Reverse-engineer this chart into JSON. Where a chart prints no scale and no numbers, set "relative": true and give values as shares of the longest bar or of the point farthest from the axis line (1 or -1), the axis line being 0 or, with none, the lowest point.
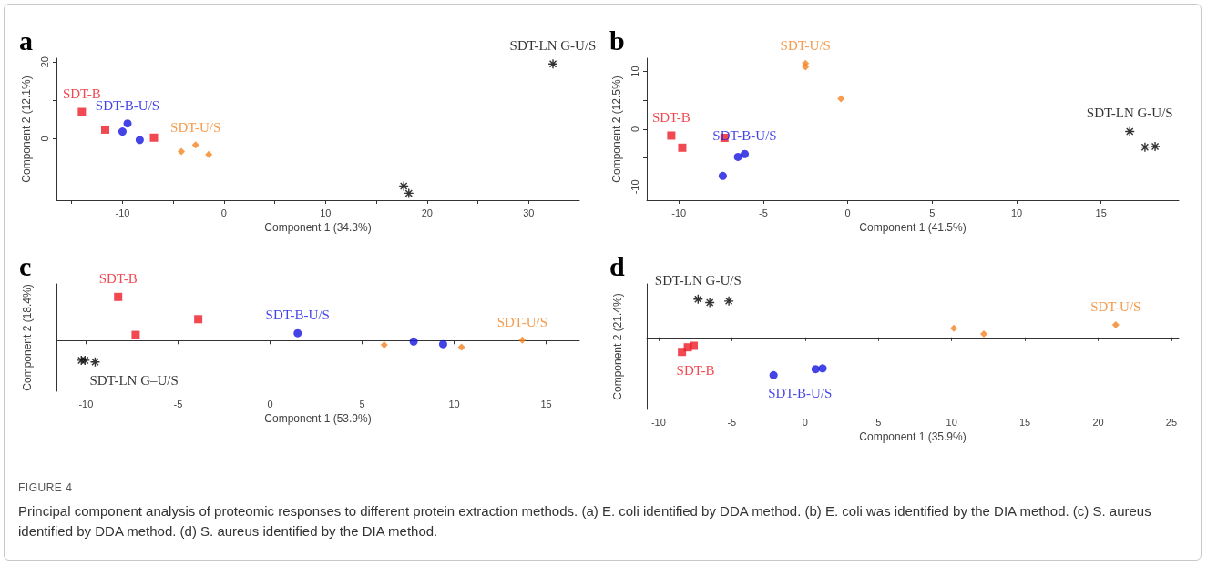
{
  "chart_data": [
    {
      "type": "scatter",
      "title": "a",
      "xlabel": "Component 1 (34.3%)",
      "ylabel": "Component 2 (12.1%)",
      "xlim": [
        -16.5,
        35
      ],
      "ylim": [
        -16,
        21
      ],
      "xticks": [
        {
          "value": -15,
          "label": null
        },
        -10,
        {
          "value": -5,
          "label": null
        },
        0,
        {
          "value": 5,
          "label": null
        },
        10,
        {
          "value": 15,
          "label": null
        },
        20,
        {
          "value": 25,
          "label": null
        },
        30
      ],
      "yticks": [
        {
          "value": -10,
          "label": null
        },
        0,
        {
          "value": 10,
          "label": null
        },
        20
      ],
      "series": [
        {
          "name": "SDT-B",
          "color": "#ee1c25",
          "marker": "square",
          "x": [
            -14.0,
            -11.7,
            -6.9
          ],
          "values": [
            7.0,
            2.4,
            0.3
          ]
        },
        {
          "name": "SDT-B-U/S",
          "color": "#1515e0",
          "marker": "circle",
          "x": [
            -9.5,
            -10.0,
            -8.3
          ],
          "values": [
            4.0,
            1.9,
            -0.3
          ]
        },
        {
          "name": "SDT-U/S",
          "color": "#f58220",
          "marker": "diamond",
          "x": [
            -4.2,
            -2.8,
            -1.5
          ],
          "values": [
            -3.3,
            -1.6,
            -4.1
          ]
        },
        {
          "name": "SDT-LN G-U/S",
          "color": "#000000",
          "marker": "star",
          "x": [
            17.7,
            18.2,
            32.4
          ],
          "values": [
            -12.3,
            -14.2,
            19.5
          ]
        }
      ]
    },
    {
      "type": "scatter",
      "title": "b",
      "xlabel": "Component 1 (41.5%)",
      "ylabel": "Component 2 (12.5%)",
      "xlim": [
        -11.9,
        19.6
      ],
      "ylim": [
        -12.3,
        12.3
      ],
      "xticks": [
        -10,
        -5,
        0,
        5,
        10,
        15
      ],
      "yticks": [
        -10,
        {
          "value": -5,
          "label": null
        },
        0,
        {
          "value": 5,
          "label": null
        },
        10
      ],
      "series": [
        {
          "name": "SDT-B",
          "color": "#ee1c25",
          "marker": "square",
          "x": [
            -10.45,
            -9.8,
            -7.3
          ],
          "values": [
            -1.1,
            -3.2,
            -1.5
          ]
        },
        {
          "name": "SDT-B-U/S",
          "color": "#1515e0",
          "marker": "circle",
          "x": [
            -6.5,
            -6.1,
            -7.4
          ],
          "values": [
            -4.8,
            -4.3,
            -8.1
          ]
        },
        {
          "name": "SDT-U/S",
          "color": "#f58220",
          "marker": "diamond",
          "x": [
            -2.5,
            -2.5,
            -0.4
          ],
          "values": [
            11.4,
            10.8,
            5.3
          ]
        },
        {
          "name": "SDT-LN G-U/S",
          "color": "#000000",
          "marker": "star",
          "x": [
            16.7,
            17.6,
            18.2
          ],
          "values": [
            -0.4,
            -3.1,
            -3.0
          ]
        }
      ]
    },
    {
      "type": "scatter",
      "title": "c",
      "xlabel": "Component 1 (53.9%)",
      "ylabel": "Component 2 (18.4%)",
      "xlim": [
        -11.6,
        16.8
      ],
      "relative": true,
      "xticks": [
        -10,
        -5,
        0,
        5,
        10,
        15
      ],
      "series": [
        {
          "name": "SDT-B",
          "color": "#ee1c25",
          "marker": "square",
          "x": [
            -8.25,
            -3.9,
            -7.3
          ],
          "values": [
            1,
            0.49,
            0.13
          ]
        },
        {
          "name": "SDT-B-U/S",
          "color": "#1515e0",
          "marker": "circle",
          "x": [
            1.5,
            7.8,
            9.4
          ],
          "values": [
            0.17,
            -0.02,
            -0.08
          ]
        },
        {
          "name": "SDT-U/S",
          "color": "#f58220",
          "marker": "diamond",
          "x": [
            6.2,
            10.4,
            13.7
          ],
          "values": [
            -0.1,
            -0.15,
            0.01
          ]
        },
        {
          "name": "SDT-LN G–U/S",
          "color": "#000000",
          "marker": "star",
          "x": [
            -10.25,
            -10.05,
            -9.5
          ],
          "values": [
            -0.45,
            -0.45,
            -0.49
          ]
        }
      ]
    },
    {
      "type": "scatter",
      "title": "d",
      "xlabel": "Component 1 (35.9%)",
      "ylabel": "Component 2 (21.4%)",
      "xlim": [
        -10.8,
        25.5
      ],
      "relative": true,
      "xticks": [
        -10,
        -5,
        0,
        5,
        10,
        15,
        20,
        25
      ],
      "annotations": [
        "FIGURE 4",
        "Principal component analysis of proteomic responses to different protein extraction methods. (a) E. coli identified by DDA method. (b) E. coli was identified by the DIA method. (c) S. aureus identified by DDA method. (d) S. aureus identified by the DIA method."
      ],
      "series": [
        {
          "name": "SDT-B",
          "color": "#ee1c25",
          "marker": "square",
          "x": [
            -8.4,
            -8.0,
            -7.6
          ],
          "values": [
            -0.38,
            -0.26,
            -0.22
          ]
        },
        {
          "name": "SDT-B-U/S",
          "color": "#1515e0",
          "marker": "circle",
          "x": [
            -2.15,
            0.72,
            1.2
          ],
          "values": [
            -0.99,
            -0.83,
            -0.81
          ]
        },
        {
          "name": "SDT-U/S",
          "color": "#f58220",
          "marker": "diamond",
          "x": [
            10.15,
            12.2,
            21.2
          ],
          "values": [
            0.24,
            0.09,
            0.33
          ]
        },
        {
          "name": "SDT-LN G-U/S",
          "color": "#000000",
          "marker": "star",
          "x": [
            -7.3,
            -6.5,
            -5.2
          ],
          "values": [
            1,
            0.91,
            0.95
          ]
        }
      ]
    }
  ]
}
